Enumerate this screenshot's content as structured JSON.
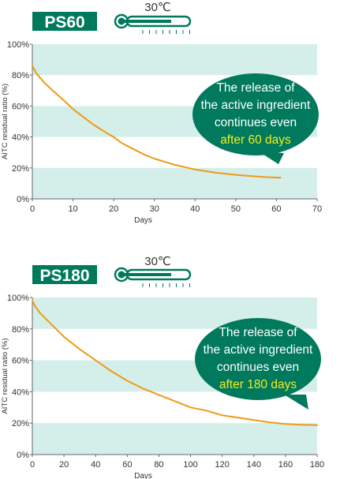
{
  "colors": {
    "brand_green": "#00795c",
    "band_fill": "#d4efe9",
    "curve": "#ee9a17",
    "axis": "#666666",
    "text": "#333333",
    "highlight_text": "#f4ee21",
    "callout_text": "#ffffff",
    "thermometer": "#00795c"
  },
  "icons": [
    "thermometer-icon"
  ],
  "chart_data": [
    {
      "type": "line",
      "product_label": "PS60",
      "temperature": "30℃",
      "xlabel": "Days",
      "ylabel": "AITC residual ratio (%)",
      "xlim": [
        0,
        70
      ],
      "ylim": [
        0,
        100
      ],
      "x_ticks": [
        0,
        10,
        20,
        30,
        40,
        50,
        60,
        70
      ],
      "x_tick_labels": [
        "0",
        "10",
        "20",
        "30",
        "40",
        "50",
        "60",
        "70"
      ],
      "y_ticks": [
        0,
        20,
        40,
        60,
        80,
        100
      ],
      "y_tick_labels": [
        "0%",
        "20%",
        "40%",
        "60%",
        "80%",
        "100%"
      ],
      "grid": "horizontal bands",
      "series": [
        {
          "x": [
            0,
            1,
            3,
            5,
            8,
            10,
            12,
            15,
            18,
            20,
            22,
            25,
            28,
            30,
            35,
            40,
            45,
            50,
            55,
            58,
            61
          ],
          "y": [
            86,
            81,
            75,
            70,
            63,
            58,
            54,
            48,
            43,
            40,
            36,
            32,
            28,
            26,
            22,
            19,
            17,
            15.5,
            14.5,
            14,
            13.7
          ]
        }
      ],
      "callout": {
        "lines": [
          "The release of",
          "the active ingredient",
          "continues even"
        ],
        "highlight": "after 60 days"
      }
    },
    {
      "type": "line",
      "product_label": "PS180",
      "temperature": "30℃",
      "xlabel": "Days",
      "ylabel": "AITC residual ratio (%)",
      "xlim": [
        0,
        180
      ],
      "ylim": [
        0,
        100
      ],
      "x_ticks": [
        0,
        20,
        40,
        60,
        80,
        100,
        120,
        140,
        160,
        180
      ],
      "x_tick_labels": [
        "0",
        "20",
        "40",
        "60",
        "80",
        "100",
        "120",
        "140",
        "160",
        "180"
      ],
      "y_ticks": [
        0,
        20,
        40,
        60,
        80,
        100
      ],
      "y_tick_labels": [
        "0%",
        "20%",
        "40%",
        "60%",
        "80%",
        "100%"
      ],
      "grid": "horizontal bands",
      "series": [
        {
          "x": [
            0,
            2,
            5,
            10,
            15,
            20,
            25,
            30,
            40,
            50,
            60,
            70,
            80,
            90,
            100,
            110,
            120,
            130,
            140,
            150,
            160,
            170,
            180
          ],
          "y": [
            98,
            94,
            90,
            85,
            80,
            75,
            71,
            67,
            60,
            53,
            47,
            42,
            38,
            34,
            30,
            28,
            25,
            23.5,
            22,
            20.5,
            19.5,
            19,
            18.7
          ]
        }
      ],
      "callout": {
        "lines": [
          "The release of",
          "the active ingredient",
          "continues even"
        ],
        "highlight": "after 180 days"
      }
    }
  ]
}
